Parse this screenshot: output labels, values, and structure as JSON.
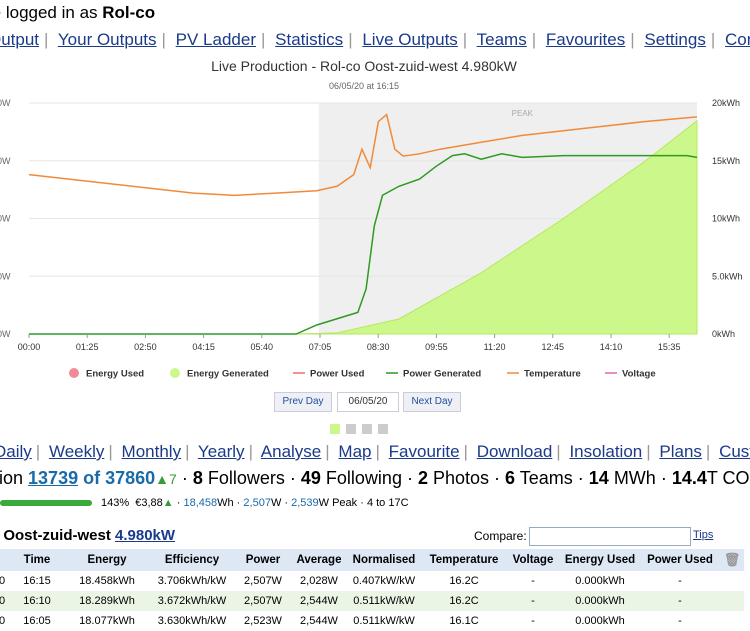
{
  "header": {
    "logged_prefix": "re logged in as ",
    "user": "Rol-co"
  },
  "nav": [
    "Output",
    "Your Outputs",
    "PV Ladder",
    "Statistics",
    "Live Outputs",
    "Teams",
    "Favourites",
    "Settings",
    "Commu"
  ],
  "chart_data": {
    "type": "line",
    "title": "Live Production - Rol-co Oost-zuid-west 4.980kW",
    "subtitle": "06/05/20 at 16:15",
    "x_ticks": [
      "00:00",
      "01:25",
      "02:50",
      "04:15",
      "05:40",
      "07:05",
      "08:30",
      "09:55",
      "11:20",
      "12:45",
      "14:10",
      "15:35"
    ],
    "y_left_ticks": [
      "0W",
      "0W",
      "0W",
      "0W",
      "0W"
    ],
    "y_right_ticks": [
      "0kWh",
      "5.0kWh",
      "10kWh",
      "15kWh",
      "20kWh"
    ],
    "y_right_range": [
      0,
      20
    ],
    "peak_label": "PEAK",
    "legend": [
      "Energy Used",
      "Energy Generated",
      "Power Used",
      "Power Generated",
      "Temperature",
      "Voltage"
    ],
    "colors": {
      "energy_used": "#f08c9a",
      "energy_generated": "#ccf78a",
      "power_used": "#f06a6a",
      "power_generated": "#2e9a22",
      "temperature": "#f08a3a",
      "voltage": "#e466b4"
    },
    "x_hours": [
      0,
      16.25
    ],
    "energy_generated": {
      "x": [
        6.5,
        7.5,
        9.0,
        11.0,
        13.0,
        15.0,
        16.25
      ],
      "y": [
        0,
        0.1,
        1.3,
        5.3,
        10.0,
        15.0,
        18.458
      ]
    },
    "power_generated": {
      "x": [
        0,
        6.5,
        7.0,
        8.0,
        8.2,
        8.4,
        8.6,
        9.0,
        9.5,
        9.9,
        10.3,
        10.6,
        11.0,
        11.5,
        12.0,
        13.0,
        14.0,
        15.0,
        16.0,
        16.25
      ],
      "y": [
        0,
        0,
        0.05,
        0.12,
        0.25,
        0.6,
        0.77,
        0.82,
        0.86,
        0.93,
        0.99,
        1.0,
        0.97,
        1.0,
        0.98,
        0.99,
        0.99,
        0.99,
        0.99,
        0.98
      ]
    },
    "temperature": {
      "x": [
        0,
        1.0,
        2.0,
        3.0,
        4.0,
        5.0,
        6.0,
        7.0,
        7.5,
        7.9,
        8.1,
        8.3,
        8.5,
        8.7,
        8.9,
        9.1,
        9.5,
        10.0,
        11.0,
        12.0,
        13.0,
        14.0,
        15.0,
        16.25
      ],
      "y": [
        0.69,
        0.67,
        0.65,
        0.63,
        0.61,
        0.6,
        0.61,
        0.62,
        0.64,
        0.69,
        0.8,
        0.72,
        0.92,
        0.95,
        0.8,
        0.77,
        0.78,
        0.8,
        0.83,
        0.86,
        0.88,
        0.9,
        0.92,
        0.94
      ]
    }
  },
  "buttons": {
    "prev_day": "Prev Day",
    "date": "06/05/20",
    "next_day": "Next Day"
  },
  "subnav": [
    "Daily",
    "Weekly",
    "Monthly",
    "Yearly",
    "Analyse",
    "Map",
    "Favourite",
    "Download",
    "Insolation",
    "Plans",
    "Custo"
  ],
  "stats": {
    "prefix": "ration ",
    "rank": "13739",
    "of": "of 37860",
    "delta": "▲7",
    "followers_n": "8",
    "followers": "Followers",
    "following_n": "49",
    "following": "Following",
    "photos_n": "2",
    "photos": "Photos",
    "teams_n": "6",
    "teams": "Teams",
    "mwh_n": "14",
    "mwh": "MWh",
    "co2_n": "14.4",
    "co2": "T CO"
  },
  "progress": {
    "fraction": 1.0,
    "pct": "143%",
    "money": "€3,88",
    "wh": "18,458",
    "wh_unit": "Wh",
    "w": "2,507",
    "w_unit": "W",
    "peak": "2,539",
    "peak_unit": "W Peak",
    "temp_range": "4 to 17C"
  },
  "system": {
    "name": "o Oost-zuid-west",
    "size": "4.980kW"
  },
  "compare": {
    "label": "Compare:",
    "tips": "Tips"
  },
  "table": {
    "headers": [
      "",
      "Time",
      "Energy",
      "Efficiency",
      "Power",
      "Average",
      "Normalised",
      "Temperature",
      "Voltage",
      "Energy Used",
      "Power Used"
    ],
    "rows": [
      [
        "0",
        "16:15",
        "18.458kWh",
        "3.706kWh/kW",
        "2,507W",
        "2,028W",
        "0.407kW/kW",
        "16.2C",
        "-",
        "0.000kWh",
        "-"
      ],
      [
        "0",
        "16:10",
        "18.289kWh",
        "3.672kWh/kW",
        "2,507W",
        "2,544W",
        "0.511kW/kW",
        "16.2C",
        "-",
        "0.000kWh",
        "-"
      ],
      [
        "0",
        "16:05",
        "18.077kWh",
        "3.630kWh/kW",
        "2,523W",
        "2,544W",
        "0.511kW/kW",
        "16.1C",
        "-",
        "0.000kWh",
        "-"
      ]
    ]
  }
}
